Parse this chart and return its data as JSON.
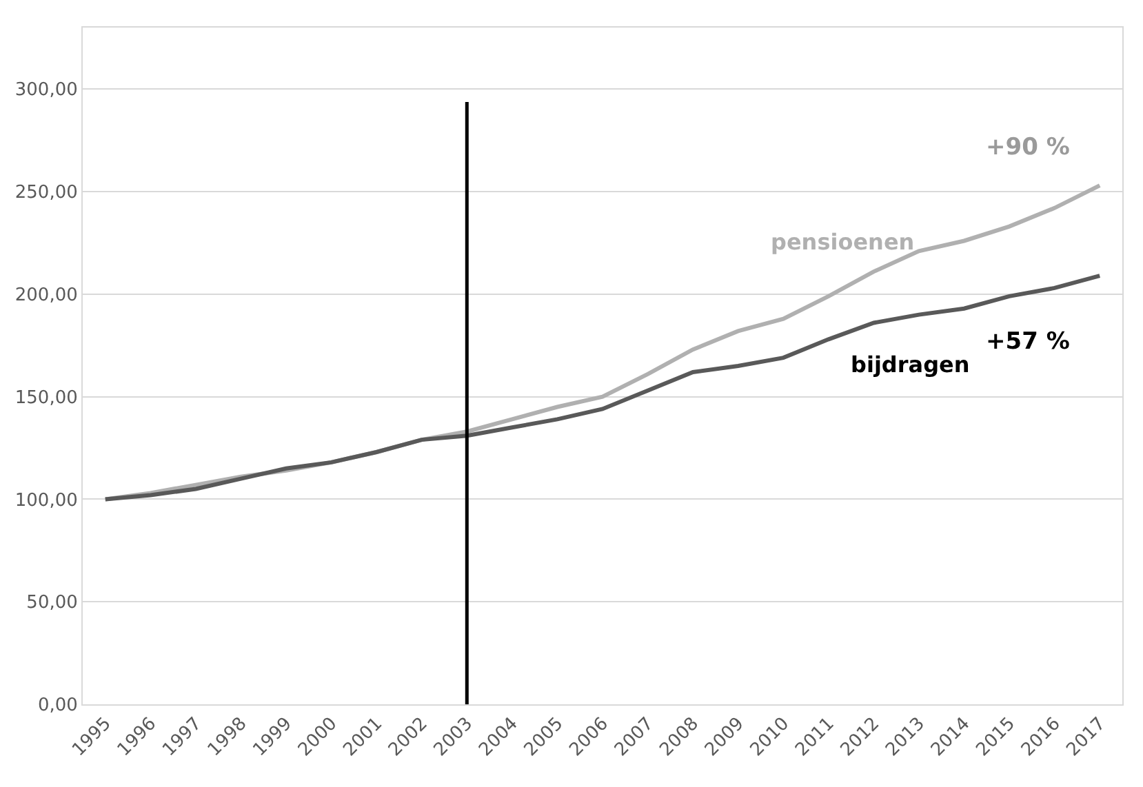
{
  "chart_data": {
    "type": "line",
    "categories": [
      "1995",
      "1996",
      "1997",
      "1998",
      "1999",
      "2000",
      "2001",
      "2002",
      "2003",
      "2004",
      "2005",
      "2006",
      "2007",
      "2008",
      "2009",
      "2010",
      "2011",
      "2012",
      "2013",
      "2014",
      "2015",
      "2016",
      "2017"
    ],
    "series": [
      {
        "name": "pensioenen",
        "color": "#b0b0b0",
        "values": [
          100,
          103,
          107,
          111,
          114,
          118,
          123,
          129,
          133,
          139,
          145,
          150,
          161,
          173,
          182,
          188,
          199,
          211,
          221,
          226,
          233,
          242,
          253
        ]
      },
      {
        "name": "bijdragen",
        "color": "#595959",
        "values": [
          100,
          102,
          105,
          110,
          115,
          118,
          123,
          129,
          131,
          135,
          139,
          144,
          153,
          162,
          165,
          169,
          178,
          186,
          190,
          193,
          199,
          203,
          209
        ]
      }
    ],
    "ylim": [
      0,
      330
    ],
    "yticks": [
      {
        "value": 0,
        "label": "0,00"
      },
      {
        "value": 50,
        "label": "50,00"
      },
      {
        "value": 100,
        "label": "100,00"
      },
      {
        "value": 150,
        "label": "150,00"
      },
      {
        "value": 200,
        "label": "200,00"
      },
      {
        "value": 250,
        "label": "250,00"
      },
      {
        "value": 300,
        "label": "300,00"
      }
    ],
    "grid": "y",
    "legend": false,
    "marker": "none",
    "line_style": "solid",
    "ref_lines": [
      {
        "axis": "x",
        "value": "2003",
        "color": "#000000"
      }
    ],
    "annotations": [
      "+90 %",
      "+57 %"
    ]
  }
}
